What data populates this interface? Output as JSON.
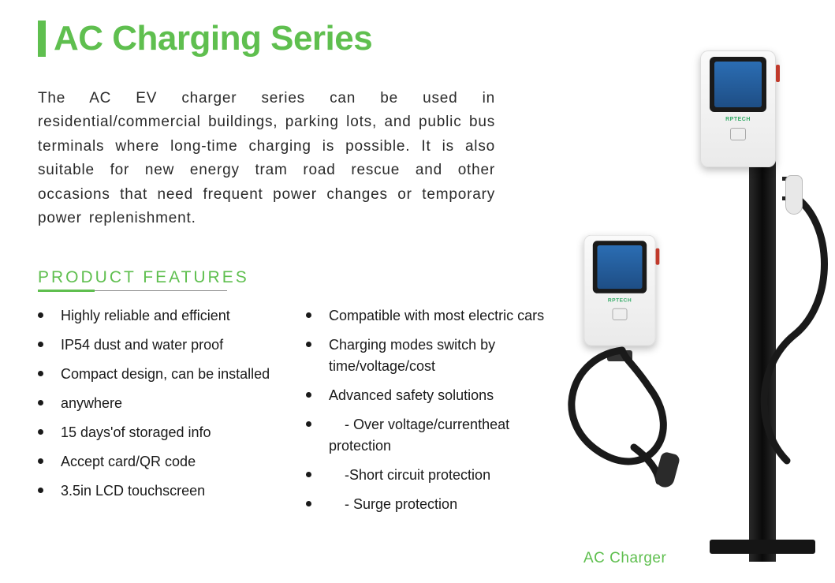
{
  "title": "AC Charging Series",
  "description": "The AC EV charger series can be used in residential/commercial buildings, parking lots, and public bus terminals where long-time charging is possible. It is also suitable for new energy tram road rescue and other occasions that need frequent power changes or temporary power replenishment.",
  "features_heading": "PRODUCT FEATURES",
  "features_left": [
    "Highly reliable and efficient",
    "IP54 dust and water proof",
    "Compact design, can be installed",
    "anywhere",
    "15 days'of storaged info",
    "Accept card/QR code",
    "3.5in LCD touchscreen"
  ],
  "features_right": [
    "Compatible with most electric cars",
    "Charging modes switch by time/voltage/cost",
    "Advanced safety solutions",
    "    - Over voltage/currentheat protection",
    "    -Short circuit protection",
    "    - Surge protection"
  ],
  "caption": "AC Charger",
  "brand_label": "RPTECH",
  "colors": {
    "accent": "#5fbf4f",
    "text": "#2a2a2a",
    "bullet": "#1a1a1a",
    "screen_top": "#2b6db3",
    "screen_bottom": "#1e4e85",
    "side_button": "#c0392b",
    "pole": "#151515",
    "cable": "#1a1a1a"
  }
}
